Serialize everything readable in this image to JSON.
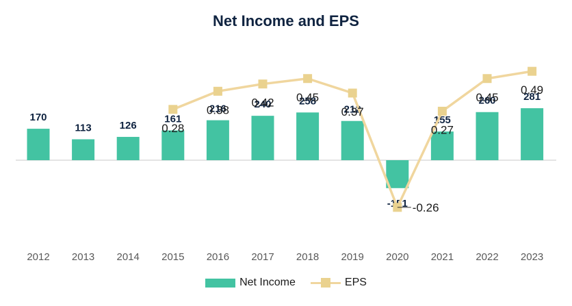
{
  "chart_data": {
    "type": "bar",
    "title": "Net Income and EPS",
    "categories": [
      "2012",
      "2013",
      "2014",
      "2015",
      "2016",
      "2017",
      "2018",
      "2019",
      "2020",
      "2021",
      "2022",
      "2023"
    ],
    "series": [
      {
        "name": "Net Income",
        "type": "bar",
        "color": "#43c3a2",
        "values": [
          170,
          113,
          126,
          161,
          216,
          240,
          258,
          212,
          -151,
          155,
          260,
          281
        ],
        "labels": [
          "170",
          "113",
          "126",
          "161",
          "216",
          "240",
          "258",
          "212",
          "-151",
          "155",
          "260",
          "281"
        ]
      },
      {
        "name": "EPS",
        "type": "line",
        "color": "#f0d69e",
        "marker_color": "#ead28f",
        "x": [
          "2015",
          "2016",
          "2017",
          "2018",
          "2019",
          "2020",
          "2021",
          "2022",
          "2023"
        ],
        "values": [
          0.28,
          0.38,
          0.42,
          0.45,
          0.37,
          -0.26,
          0.27,
          0.45,
          0.49
        ],
        "labels": [
          "0.28",
          "0.38",
          "0.42",
          "0.45",
          "0.37",
          "-0.26",
          "0.27",
          "0.45",
          "0.49"
        ]
      }
    ],
    "xlabel": "",
    "ylabel": "",
    "legend_position": "bottom",
    "grid": false
  }
}
